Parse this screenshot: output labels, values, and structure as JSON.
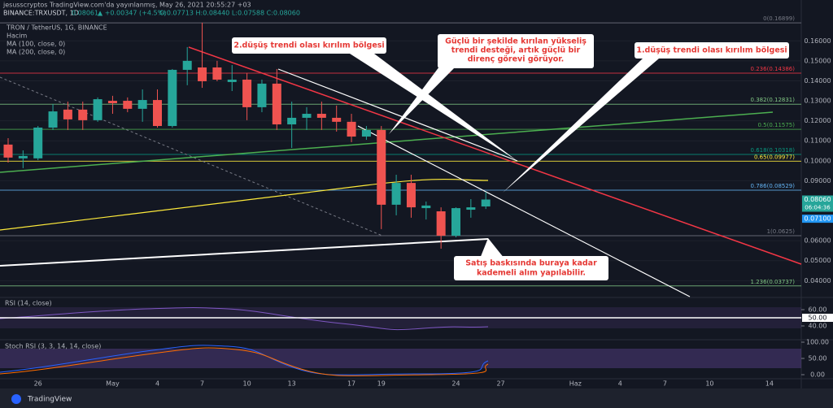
{
  "header": {
    "publisher": "jesusscryptos TradingView.com'da yayınlanmış, May 26, 2021 20:55:27 +03",
    "symbol": "BINANCE:TRXUSDT, 1D",
    "last": "0.08061",
    "change": "▲ +0.00347 (+4.5%)",
    "ohlc": "O:0.07713 H:0.08440 L:0.07588 C:0.08060"
  },
  "legend": [
    "TRON / TetherUS, 1G, BINANCE",
    "Hacim",
    "MA (100, close, 0)",
    "MA (200, close, 0)"
  ],
  "chart_data": {
    "type": "candlestick",
    "categories": [
      null,
      null,
      "26",
      null,
      null,
      null,
      null,
      "May",
      null,
      null,
      "4",
      null,
      null,
      "7",
      null,
      null,
      "10",
      null,
      null,
      "13",
      null,
      null,
      null,
      "17",
      null,
      "19",
      null,
      null,
      null,
      null,
      "24",
      null,
      null
    ],
    "open": [
      0.1081,
      0.1012,
      0.1012,
      0.1166,
      0.1256,
      0.1256,
      0.1203,
      0.13,
      0.13,
      0.126,
      0.1304,
      0.1174,
      0.1455,
      0.1467,
      0.1467,
      0.1394,
      0.1406,
      0.1268,
      0.1386,
      0.1182,
      0.1215,
      0.1235,
      0.1215,
      0.1195,
      0.1121,
      0.1154,
      0.078,
      0.0889,
      0.0763,
      0.0747,
      0.0625,
      0.0755,
      0.07713
    ],
    "high": [
      0.1113,
      0.1052,
      0.1174,
      0.1284,
      0.1296,
      0.1296,
      0.1317,
      0.1325,
      0.1317,
      0.1357,
      0.1357,
      0.1459,
      0.1569,
      0.1691,
      0.15,
      0.1479,
      0.1439,
      0.1406,
      0.1459,
      0.1296,
      0.1268,
      0.1296,
      0.1276,
      0.1235,
      0.1174,
      0.1174,
      0.093,
      0.093,
      0.0796,
      0.0767,
      0.0767,
      0.0808,
      0.0844
    ],
    "low": [
      0.0991,
      0.0963,
      0.1003,
      0.1154,
      0.1154,
      0.1154,
      0.1195,
      0.1235,
      0.1243,
      0.1195,
      0.1166,
      0.1166,
      0.1378,
      0.1365,
      0.1398,
      0.1349,
      0.1203,
      0.1243,
      0.1154,
      0.1064,
      0.1154,
      0.1154,
      0.1146,
      0.1093,
      0.1105,
      0.0658,
      0.0727,
      0.0715,
      0.0706,
      0.056,
      0.0617,
      0.0715,
      0.07588
    ],
    "close": [
      0.1016,
      0.1024,
      0.1166,
      0.1247,
      0.1207,
      0.1203,
      0.1308,
      0.1288,
      0.126,
      0.1304,
      0.1174,
      0.1455,
      0.15,
      0.1398,
      0.1406,
      0.1406,
      0.1268,
      0.1386,
      0.1182,
      0.1215,
      0.1235,
      0.1215,
      0.1195,
      0.1121,
      0.1154,
      0.078,
      0.0889,
      0.0767,
      0.0776,
      0.0625,
      0.0763,
      0.0767,
      0.0806
    ],
    "up_color": "#26a69a",
    "down_color": "#ef5350",
    "future_x_labels": [
      "27",
      "Haz",
      "4",
      "7",
      "10",
      "14"
    ],
    "ylim": [
      0.032,
      0.1715
    ],
    "yticks": [
      {
        "value": 0.16,
        "label": "0.16000"
      },
      {
        "value": 0.15,
        "label": "0.15000"
      },
      {
        "value": 0.14,
        "label": "0.14000"
      },
      {
        "value": 0.13,
        "label": "0.13000"
      },
      {
        "value": 0.12,
        "label": "0.12000"
      },
      {
        "value": 0.11,
        "label": "0.11000"
      },
      {
        "value": 0.1,
        "label": "0.10000"
      },
      {
        "value": 0.09,
        "label": "0.09000"
      },
      {
        "value": 0.06,
        "label": "0.06000"
      },
      {
        "value": 0.05,
        "label": "0.05000"
      },
      {
        "value": 0.04,
        "label": "0.04000"
      }
    ],
    "grid": true,
    "fib_levels": [
      {
        "label": "0(0.16899)",
        "value": 0.16899,
        "color": "#787b86"
      },
      {
        "label": "0.236(0.14386)",
        "value": 0.14386,
        "color": "#f23645"
      },
      {
        "label": "0.382(0.12831)",
        "value": 0.12831,
        "color": "#81c784"
      },
      {
        "label": "0.5(0.11575)",
        "value": 0.11575,
        "color": "#4caf50"
      },
      {
        "label": "0.618(0.10318)",
        "value": 0.10318,
        "color": "#089981"
      },
      {
        "label": "0.65(0.09977)",
        "value": 0.09977,
        "color": "#ffeb3b"
      },
      {
        "label": "0.786(0.08529)",
        "value": 0.08529,
        "color": "#64b5f6"
      },
      {
        "label": "1(0.0625)",
        "value": 0.0625,
        "color": "#787b86"
      },
      {
        "label": "1.236(0.03737)",
        "value": 0.03737,
        "color": "#81c784"
      }
    ],
    "price_tags": [
      {
        "value": 0.0806,
        "label": "0.08060",
        "color": "#26a69a"
      },
      {
        "value": 0.071,
        "label": "0.07100",
        "color": "#2196f3"
      }
    ],
    "countdown": "06:04:36",
    "annotations": [
      {
        "lines": [
          "2.düşüş trendi olası kırılım bölgesi"
        ]
      },
      {
        "lines": [
          "Güçlü bir şekilde kırılan yükseliş",
          "trendi desteği, artık güçlü bir",
          "direnç görevi görüyor."
        ]
      },
      {
        "lines": [
          "1.düşüş trendi olası kırılım bölgesi"
        ]
      },
      {
        "lines": [
          "Satış baskısında buraya kadar",
          "kademeli alım yapılabilir."
        ]
      }
    ]
  },
  "rsi": {
    "title": "RSI (14, close)",
    "ylim": [
      26,
      73
    ],
    "yticks": [
      {
        "value": 60,
        "label": "60.00"
      },
      {
        "value": 50,
        "label": "50.00"
      },
      {
        "value": 40,
        "label": "40.00"
      }
    ]
  },
  "stoch": {
    "title": "Stoch RSI (3, 3, 14, 14, close)",
    "ylim": [
      -10,
      102.5
    ],
    "yticks": [
      {
        "value": 100,
        "label": "100.00"
      },
      {
        "value": 50,
        "label": "50.00"
      },
      {
        "value": 0,
        "label": "0.00"
      }
    ]
  },
  "footer": "TradingView"
}
